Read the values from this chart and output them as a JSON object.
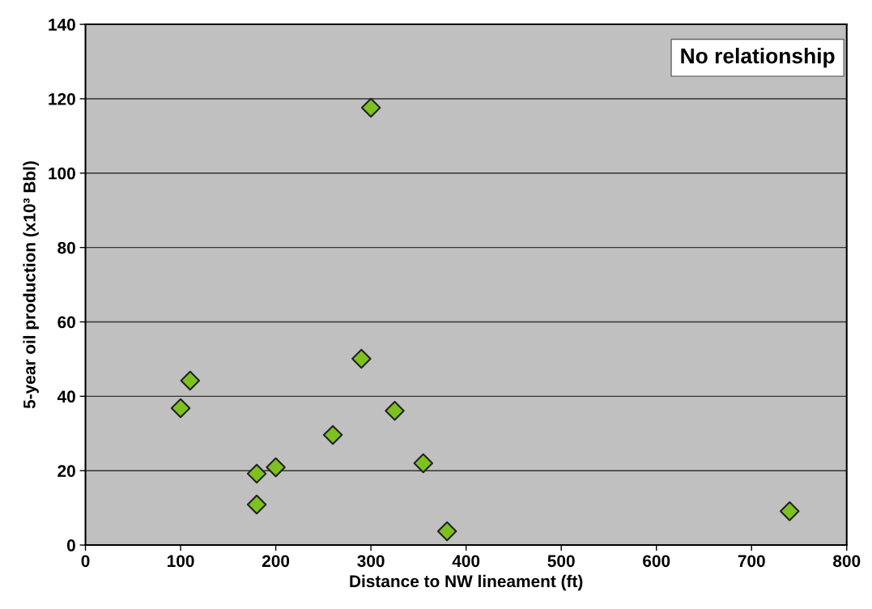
{
  "chart_data": {
    "type": "scatter",
    "xlabel": "Distance to NW lineament (ft)",
    "ylabel": "5-year oil production (x10³ Bbl)",
    "annotations": [
      "No relationship"
    ],
    "x": [
      100,
      110,
      180,
      180,
      200,
      260,
      290,
      300,
      325,
      355,
      380,
      740
    ],
    "series": [
      {
        "color": "#7dc11f",
        "values": [
          36.8,
          44.2,
          19.2,
          10.9,
          20.9,
          29.6,
          50.1,
          117.6,
          36.1,
          22.0,
          3.7,
          9.1
        ]
      }
    ],
    "xlim": [
      0,
      800
    ],
    "xticks": [
      0,
      100,
      200,
      300,
      400,
      500,
      600,
      700,
      800
    ],
    "ylim": [
      0,
      140
    ],
    "yticks": [
      0,
      20,
      40,
      60,
      80,
      100,
      120,
      140
    ],
    "grid": "y",
    "marker": "diamond",
    "legend": false
  }
}
